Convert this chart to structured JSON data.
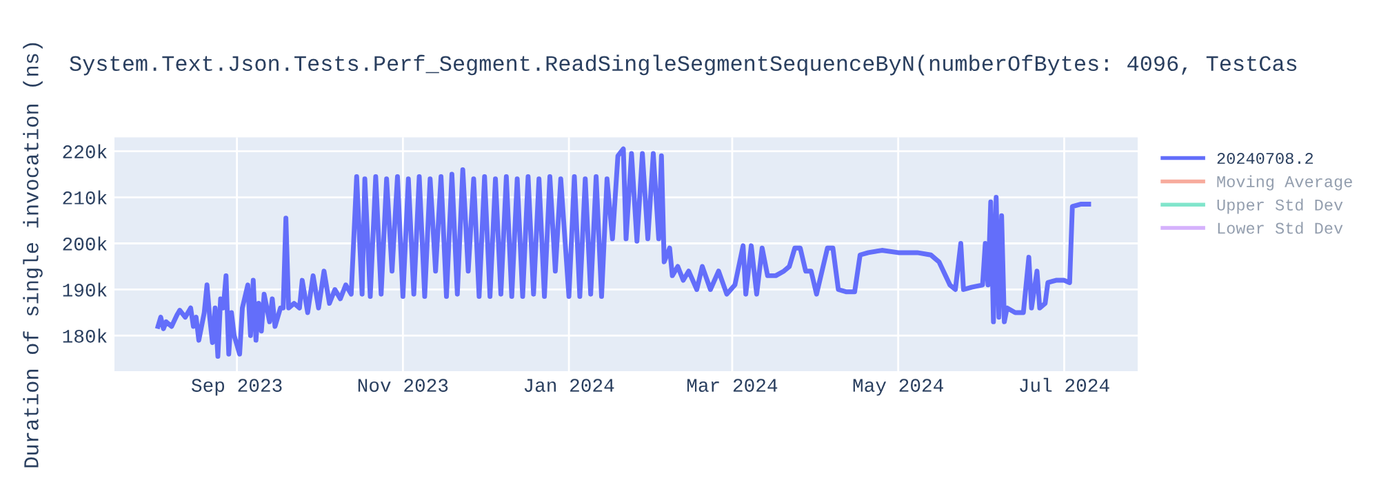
{
  "chart_data": {
    "type": "line",
    "title": "System.Text.Json.Tests.Perf_Segment.ReadSingleSegmentSequenceByN(numberOfBytes: 4096, TestCas",
    "ylabel": "Duration of single invocation (ns)",
    "xlim": [
      "2023-07-18",
      "2024-07-28"
    ],
    "xticks": [
      {
        "value": "2023-09-01",
        "label": "Sep 2023"
      },
      {
        "value": "2023-11-01",
        "label": "Nov 2023"
      },
      {
        "value": "2024-01-01",
        "label": "Jan 2024"
      },
      {
        "value": "2024-03-01",
        "label": "Mar 2024"
      },
      {
        "value": "2024-05-01",
        "label": "May 2024"
      },
      {
        "value": "2024-07-01",
        "label": "Jul 2024"
      }
    ],
    "ylim": [
      172300,
      223000
    ],
    "yticks": [
      {
        "value": 180000,
        "label": "180k"
      },
      {
        "value": 190000,
        "label": "190k"
      },
      {
        "value": 200000,
        "label": "200k"
      },
      {
        "value": 210000,
        "label": "210k"
      },
      {
        "value": 220000,
        "label": "220k"
      }
    ],
    "grid": true,
    "legend": "top right",
    "marker": "none",
    "line_style": "solid",
    "series": [
      {
        "name": "20240708.2",
        "color": "#636efa",
        "x": [
          "2023-08-03",
          "2023-08-04",
          "2023-08-05",
          "2023-08-06",
          "2023-08-08",
          "2023-08-10",
          "2023-08-11",
          "2023-08-13",
          "2023-08-15",
          "2023-08-16",
          "2023-08-17",
          "2023-08-18",
          "2023-08-20",
          "2023-08-21",
          "2023-08-22",
          "2023-08-23",
          "2023-08-24",
          "2023-08-25",
          "2023-08-26",
          "2023-08-27",
          "2023-08-28",
          "2023-08-29",
          "2023-08-30",
          "2023-08-31",
          "2023-09-02",
          "2023-09-03",
          "2023-09-05",
          "2023-09-06",
          "2023-09-07",
          "2023-09-08",
          "2023-09-09",
          "2023-09-10",
          "2023-09-11",
          "2023-09-13",
          "2023-09-14",
          "2023-09-15",
          "2023-09-17",
          "2023-09-18",
          "2023-09-19",
          "2023-09-20",
          "2023-09-22",
          "2023-09-24",
          "2023-09-25",
          "2023-09-27",
          "2023-09-29",
          "2023-10-01",
          "2023-10-03",
          "2023-10-05",
          "2023-10-07",
          "2023-10-09",
          "2023-10-11",
          "2023-10-13",
          "2023-10-15",
          "2023-10-17",
          "2023-10-18",
          "2023-10-20",
          "2023-10-22",
          "2023-10-24",
          "2023-10-26",
          "2023-10-28",
          "2023-10-30",
          "2023-11-01",
          "2023-11-03",
          "2023-11-05",
          "2023-11-07",
          "2023-11-09",
          "2023-11-11",
          "2023-11-13",
          "2023-11-15",
          "2023-11-17",
          "2023-11-19",
          "2023-11-21",
          "2023-11-23",
          "2023-11-25",
          "2023-11-27",
          "2023-11-29",
          "2023-12-01",
          "2023-12-03",
          "2023-12-05",
          "2023-12-07",
          "2023-12-09",
          "2023-12-11",
          "2023-12-13",
          "2023-12-15",
          "2023-12-17",
          "2023-12-19",
          "2023-12-21",
          "2023-12-23",
          "2023-12-25",
          "2023-12-27",
          "2023-12-29",
          "2024-01-01",
          "2024-01-03",
          "2024-01-05",
          "2024-01-07",
          "2024-01-09",
          "2024-01-11",
          "2024-01-13",
          "2024-01-15",
          "2024-01-17",
          "2024-01-19",
          "2024-01-21",
          "2024-01-22",
          "2024-01-24",
          "2024-01-26",
          "2024-01-28",
          "2024-01-30",
          "2024-02-01",
          "2024-02-03",
          "2024-02-04",
          "2024-02-05",
          "2024-02-07",
          "2024-02-08",
          "2024-02-10",
          "2024-02-12",
          "2024-02-14",
          "2024-02-17",
          "2024-02-19",
          "2024-02-22",
          "2024-02-25",
          "2024-02-28",
          "2024-03-02",
          "2024-03-05",
          "2024-03-06",
          "2024-03-08",
          "2024-03-10",
          "2024-03-12",
          "2024-03-14",
          "2024-03-17",
          "2024-03-20",
          "2024-03-22",
          "2024-03-24",
          "2024-03-26",
          "2024-03-28",
          "2024-03-30",
          "2024-04-01",
          "2024-04-03",
          "2024-04-05",
          "2024-04-07",
          "2024-04-09",
          "2024-04-12",
          "2024-04-15",
          "2024-04-17",
          "2024-04-20",
          "2024-04-25",
          "2024-05-01",
          "2024-05-08",
          "2024-05-13",
          "2024-05-16",
          "2024-05-18",
          "2024-05-20",
          "2024-05-22",
          "2024-05-24",
          "2024-05-25",
          "2024-05-28",
          "2024-06-01",
          "2024-06-02",
          "2024-06-03",
          "2024-06-04",
          "2024-06-05",
          "2024-06-06",
          "2024-06-07",
          "2024-06-08",
          "2024-06-09",
          "2024-06-10",
          "2024-06-13",
          "2024-06-16",
          "2024-06-18",
          "2024-06-19",
          "2024-06-21",
          "2024-06-22",
          "2024-06-24",
          "2024-06-25",
          "2024-06-28",
          "2024-07-01",
          "2024-07-03",
          "2024-07-04",
          "2024-07-07",
          "2024-07-10"
        ],
        "values": [
          182000,
          184000,
          181500,
          183000,
          182000,
          184500,
          185500,
          184000,
          186000,
          182000,
          184000,
          179000,
          185000,
          191000,
          184000,
          178500,
          186000,
          175500,
          188000,
          186000,
          193000,
          176000,
          185000,
          180000,
          176000,
          186000,
          191000,
          180000,
          192000,
          179000,
          187000,
          181000,
          189000,
          183000,
          188000,
          182000,
          186000,
          186000,
          205500,
          186000,
          187000,
          186000,
          192000,
          185000,
          193000,
          186000,
          194000,
          187000,
          190000,
          188000,
          191000,
          189000,
          214500,
          189000,
          214000,
          188500,
          214500,
          189000,
          214000,
          194000,
          214500,
          188500,
          214000,
          189000,
          214500,
          188500,
          214000,
          194000,
          214500,
          188500,
          215000,
          189000,
          216000,
          194000,
          214000,
          188500,
          214500,
          188500,
          214000,
          189000,
          214500,
          188500,
          214000,
          188500,
          214500,
          189000,
          214000,
          188500,
          214500,
          194000,
          214000,
          188500,
          214500,
          188500,
          214000,
          189000,
          214500,
          188500,
          214000,
          201000,
          219000,
          220500,
          201000,
          219500,
          200500,
          219500,
          201000,
          219500,
          201000,
          219000,
          196000,
          199000,
          193000,
          195000,
          192000,
          194000,
          190000,
          195000,
          190000,
          194000,
          189000,
          191000,
          199500,
          189000,
          199500,
          189000,
          199000,
          193000,
          193000,
          194000,
          195000,
          199000,
          199000,
          194000,
          194000,
          189000,
          194000,
          199000,
          199000,
          190000,
          189500,
          189500,
          197500,
          198000,
          198500,
          198000,
          198000,
          197500,
          196000,
          193500,
          191000,
          190000,
          200000,
          190000,
          190500,
          191000,
          200000,
          191000,
          209000,
          183000,
          210000,
          184000,
          206000,
          183000,
          186000,
          185000,
          185000,
          197000,
          186000,
          194000,
          186000,
          187000,
          191500,
          192000,
          192000,
          191500,
          208000,
          208500,
          208500
        ]
      },
      {
        "name": "Moving Average",
        "color": "#f7ab9d"
      },
      {
        "name": "Upper Std Dev",
        "color": "#80e5cb"
      },
      {
        "name": "Lower Std Dev",
        "color": "#d5b1fc"
      }
    ]
  }
}
